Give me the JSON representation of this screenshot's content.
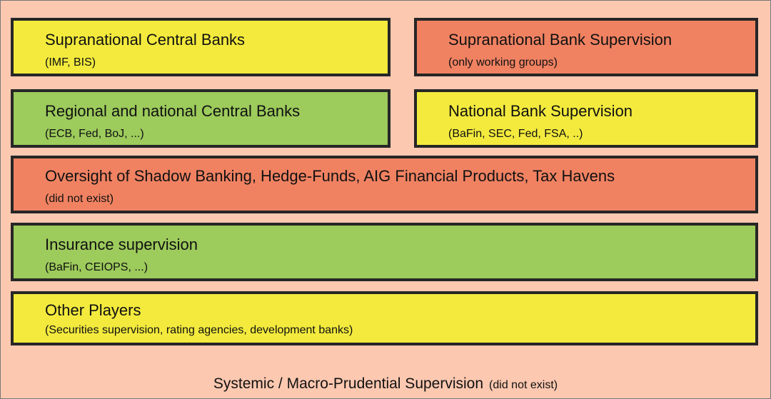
{
  "boxes": [
    {
      "title": "Supranational Central Banks",
      "subtitle": "(IMF, BIS)"
    },
    {
      "title": "Supranational Bank Supervision",
      "subtitle": "(only working groups)"
    },
    {
      "title": "Regional and national Central Banks",
      "subtitle": "(ECB, Fed, BoJ, ...)"
    },
    {
      "title": "National Bank Supervision",
      "subtitle": "(BaFin, SEC, Fed, FSA, ..)"
    },
    {
      "title": "Oversight of Shadow Banking, Hedge-Funds, AIG Financial Products, Tax Havens",
      "subtitle": "(did not exist)"
    },
    {
      "title": "Insurance supervision",
      "subtitle": "(BaFin, CEIOPS, ...)"
    },
    {
      "title": "Other Players",
      "subtitle": "(Securities supervision, rating agencies, development banks)"
    }
  ],
  "footer": {
    "title": "Systemic / Macro-Prudential Supervision",
    "note": "(did not exist)"
  }
}
